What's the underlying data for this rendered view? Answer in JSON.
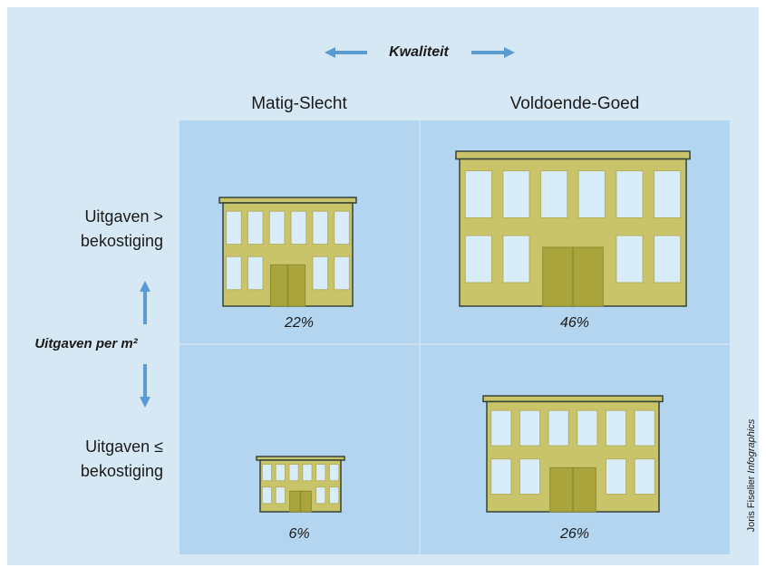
{
  "header": {
    "title": "Kwaliteit"
  },
  "columns": [
    "Matig-Slecht",
    "Voldoende-Goed"
  ],
  "rows": [
    {
      "label": [
        "Uitgaven >",
        "bekostiging"
      ]
    },
    {
      "label": [
        "Uitgaven ≤",
        "bekostiging"
      ]
    }
  ],
  "row_axis_label": "Uitgaven per m²",
  "cells": [
    [
      "22%",
      "46%"
    ],
    [
      "6%",
      "26%"
    ]
  ],
  "credit": {
    "author": "Joris Fiselier",
    "suffix": "Infographics"
  }
}
